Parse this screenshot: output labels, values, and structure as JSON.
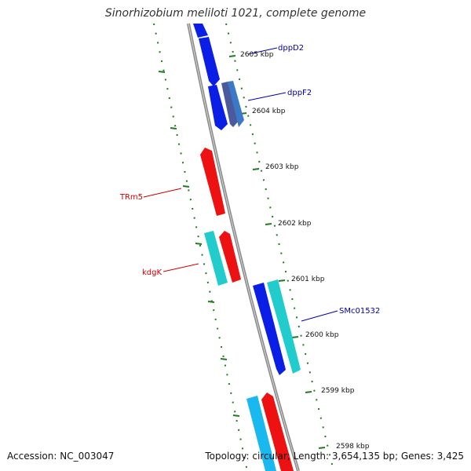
{
  "title": "Sinorhizobium meliloti 1021, complete genome",
  "footer": {
    "accession": "Accession: NC_003047",
    "summary": "Topology: circular; Length: 3,654,135 bp; Genes: 3,425"
  },
  "colors": {
    "backbone": "#8a8a8a",
    "tick": "#1f7a1f",
    "forward_cds": "#0a1ee6",
    "reverse_cds": "#ee1111",
    "cyan_cds": "#22cccc",
    "skyblue_cds": "#19b8ee",
    "slate_cds": "#4a5a9a",
    "steel_cds": "#3a78c8",
    "forward_label": "#0000aa",
    "reverse_label": "#cc0000"
  },
  "scale": {
    "ticks": [
      "2605 kbp",
      "2604 kbp",
      "2603 kbp",
      "2602 kbp",
      "2601 kbp",
      "2600 kbp",
      "2599 kbp",
      "2598 kbp"
    ]
  },
  "gene_labels": [
    {
      "name": "dppD2",
      "strand": "forward"
    },
    {
      "name": "dppF2",
      "strand": "forward"
    },
    {
      "name": "TRm5",
      "strand": "reverse"
    },
    {
      "name": "kdgK",
      "strand": "reverse"
    },
    {
      "name": "SMc01532",
      "strand": "forward"
    }
  ]
}
